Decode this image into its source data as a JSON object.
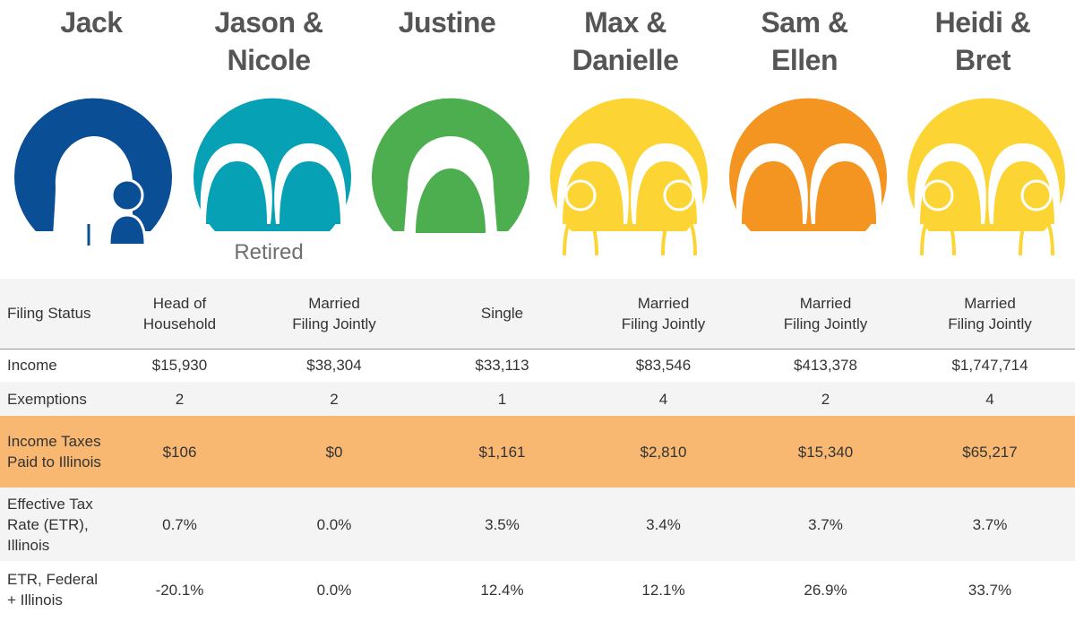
{
  "colors": {
    "jack": "#0a4f95",
    "jason_nicole": "#06a1b5",
    "justine": "#4cae4f",
    "max_danielle": "#fcd535",
    "sam_ellen": "#f49521",
    "heidi_bret": "#fcd535",
    "highlight_row": "#f8b872"
  },
  "people": [
    {
      "name_line1": "Jack",
      "name_line2": "",
      "icon": "single-parent-with-child-icon"
    },
    {
      "name_line1": "Jason &",
      "name_line2": "Nicole",
      "icon": "couple-icon",
      "note": "Retired"
    },
    {
      "name_line1": "Justine",
      "name_line2": "",
      "icon": "single-person-icon"
    },
    {
      "name_line1": "Max &",
      "name_line2": "Danielle",
      "icon": "couple-with-two-children-icon"
    },
    {
      "name_line1": "Sam &",
      "name_line2": "Ellen",
      "icon": "couple-icon"
    },
    {
      "name_line1": "Heidi &",
      "name_line2": "Bret",
      "icon": "couple-with-two-children-icon"
    }
  ],
  "table": {
    "rows": [
      {
        "label": [
          "Filing Status"
        ],
        "values": [
          [
            "Head of",
            "Household"
          ],
          [
            "Married",
            "Filing Jointly"
          ],
          [
            "Single"
          ],
          [
            "Married",
            "Filing Jointly"
          ],
          [
            "Married",
            "Filing Jointly"
          ],
          [
            "Married",
            "Filing Jointly"
          ]
        ]
      },
      {
        "label": [
          "Income"
        ],
        "values": [
          [
            "$15,930"
          ],
          [
            "$38,304"
          ],
          [
            "$33,113"
          ],
          [
            "$83,546"
          ],
          [
            "$413,378"
          ],
          [
            "$1,747,714"
          ]
        ]
      },
      {
        "label": [
          "Exemptions"
        ],
        "values": [
          [
            "2"
          ],
          [
            "2"
          ],
          [
            "1"
          ],
          [
            "4"
          ],
          [
            "2"
          ],
          [
            "4"
          ]
        ]
      },
      {
        "label": [
          "Income Taxes",
          "Paid to Illinois"
        ],
        "values": [
          [
            "$106"
          ],
          [
            "$0"
          ],
          [
            "$1,161"
          ],
          [
            "$2,810"
          ],
          [
            "$15,340"
          ],
          [
            "$65,217"
          ]
        ]
      },
      {
        "label": [
          "Effective Tax",
          "Rate (ETR),",
          "Illinois"
        ],
        "values": [
          [
            "0.7%"
          ],
          [
            "0.0%"
          ],
          [
            "3.5%"
          ],
          [
            "3.4%"
          ],
          [
            "3.7%"
          ],
          [
            "3.7%"
          ]
        ]
      },
      {
        "label": [
          "ETR, Federal",
          "+ Illinois"
        ],
        "values": [
          [
            "-20.1%"
          ],
          [
            "0.0%"
          ],
          [
            "12.4%"
          ],
          [
            "12.1%"
          ],
          [
            "26.9%"
          ],
          [
            "33.7%"
          ]
        ]
      }
    ]
  }
}
